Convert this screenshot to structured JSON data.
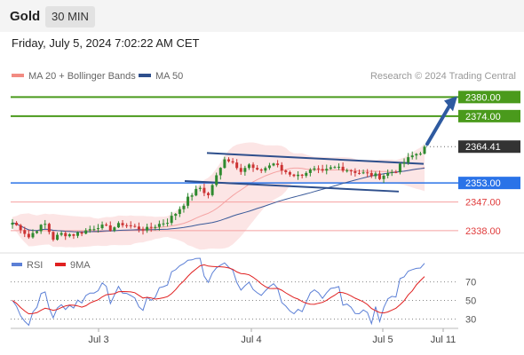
{
  "header": {
    "title": "Gold",
    "timeframe": "30 MIN"
  },
  "subtitle": "Friday, July 5, 2024 7:02:22 AM CET",
  "legend": {
    "bollinger": {
      "label": "MA 20 + Bollinger Bands",
      "color": "#f28b82"
    },
    "ma50": {
      "label": "MA 50",
      "color": "#2e4f8c"
    }
  },
  "copyright": "Research © 2024 Trading Central",
  "rsi_legend": {
    "rsi": {
      "label": "RSI",
      "color": "#5b7fd6"
    },
    "ma9": {
      "label": "9MA",
      "color": "#e02020"
    }
  },
  "chart_data": [
    {
      "type": "candlestick",
      "x_ticks": [
        "Jul 3",
        "Jul 4",
        "Jul 5",
        "Jul 11"
      ],
      "y_range": [
        2331,
        2384
      ],
      "levels": [
        {
          "value": 2380.0,
          "label": "2380.00",
          "style": "resistance",
          "color": "#4a9a1c"
        },
        {
          "value": 2374.0,
          "label": "2374.00",
          "style": "resistance",
          "color": "#4a9a1c"
        },
        {
          "value": 2364.41,
          "label": "2364.41",
          "style": "last-price",
          "color": "#333333"
        },
        {
          "value": 2353.0,
          "label": "2353.00",
          "style": "pivot",
          "color": "#2a73e8"
        },
        {
          "value": 2347.0,
          "label": "2347.00",
          "style": "support",
          "color": "#e03c3c"
        },
        {
          "value": 2338.0,
          "label": "2338.00",
          "style": "support",
          "color": "#e03c3c"
        }
      ],
      "trend_channel": {
        "upper": [
          2362.4,
          2359.0
        ],
        "lower": [
          2353.6,
          2350.3
        ]
      },
      "target_arrow": {
        "from": 2364.4,
        "to": 2380.0
      }
    },
    {
      "type": "line",
      "name": "RSI",
      "y_ticks": [
        70,
        50,
        30
      ],
      "y_range": [
        18,
        82
      ],
      "series": [
        {
          "name": "RSI",
          "color": "#5b7fd6"
        },
        {
          "name": "9MA",
          "color": "#e02020"
        }
      ]
    }
  ]
}
